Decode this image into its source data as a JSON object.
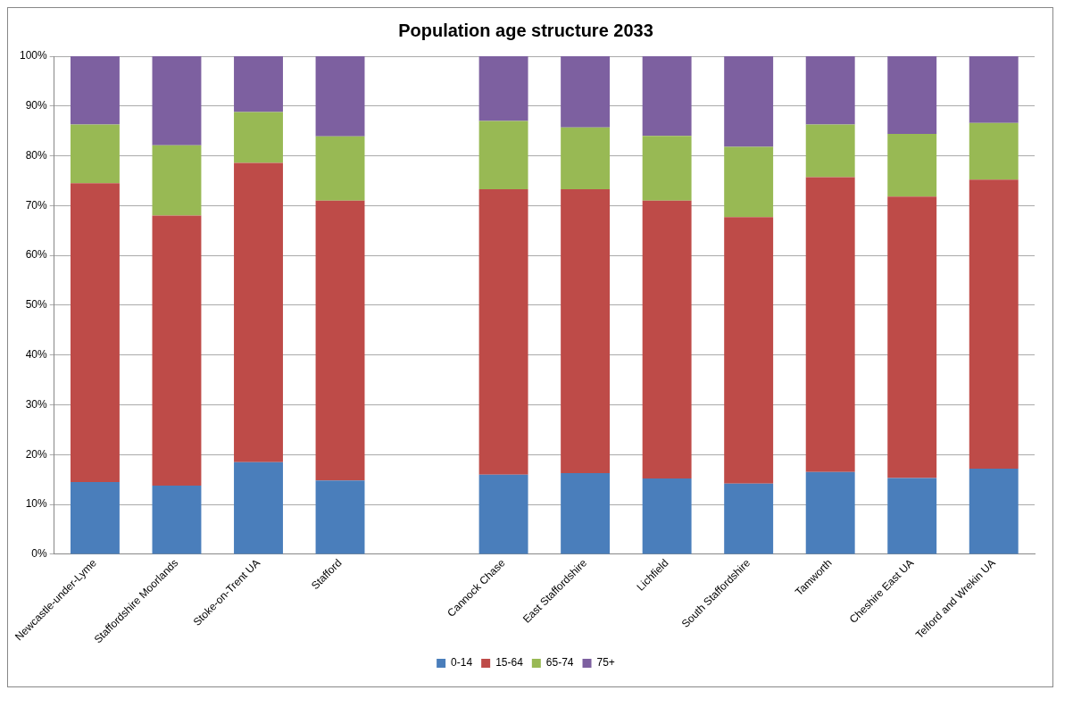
{
  "chart_data": {
    "type": "bar",
    "title": "Population age structure 2033",
    "stacked": true,
    "categories": [
      "Newcastle-under-Lyme",
      "Staffordshire Moorlands",
      "Stoke-on-Trent UA",
      "Stafford",
      null,
      "Cannock Chase",
      "East Staffordshire",
      "Lichfield",
      "South Staffordshire",
      "Tamworth",
      "Cheshire East UA",
      "Telford and Wrekin UA"
    ],
    "series": [
      {
        "name": "0-14",
        "color": "#4a7ebb",
        "values": [
          14.5,
          13.8,
          18.5,
          14.8,
          null,
          16.0,
          16.3,
          15.2,
          14.2,
          16.5,
          15.3,
          17.2
        ]
      },
      {
        "name": "15-64",
        "color": "#be4b48",
        "values": [
          60.0,
          54.2,
          60.1,
          56.2,
          null,
          57.3,
          57.0,
          55.8,
          53.5,
          59.2,
          56.5,
          58.0
        ]
      },
      {
        "name": "65-74",
        "color": "#98b954",
        "values": [
          11.8,
          14.1,
          10.2,
          12.9,
          null,
          13.7,
          12.4,
          13.0,
          14.1,
          10.6,
          12.6,
          11.4
        ]
      },
      {
        "name": "75+",
        "color": "#7d60a0",
        "values": [
          13.7,
          17.9,
          11.2,
          16.1,
          null,
          13.0,
          14.3,
          16.0,
          18.2,
          13.7,
          15.6,
          13.4
        ]
      }
    ],
    "ylim": [
      0,
      100
    ],
    "yticks": [
      {
        "value": 0,
        "label": "0%"
      },
      {
        "value": 10,
        "label": "10%"
      },
      {
        "value": 20,
        "label": "20%"
      },
      {
        "value": 30,
        "label": "30%"
      },
      {
        "value": 40,
        "label": "40%"
      },
      {
        "value": 50,
        "label": "50%"
      },
      {
        "value": 60,
        "label": "60%"
      },
      {
        "value": 70,
        "label": "70%"
      },
      {
        "value": 80,
        "label": "80%"
      },
      {
        "value": 90,
        "label": "90%"
      },
      {
        "value": 100,
        "label": "100%"
      }
    ],
    "grid": "y",
    "legend": "bottom"
  }
}
